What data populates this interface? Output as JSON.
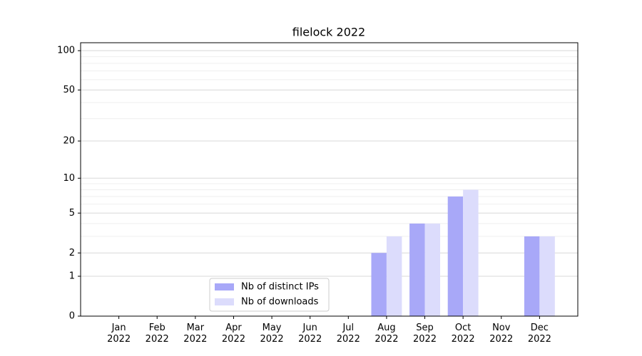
{
  "chart_data": {
    "type": "bar",
    "title": "filelock 2022",
    "categories": [
      "Jan 2022",
      "Feb 2022",
      "Mar 2022",
      "Apr 2022",
      "May 2022",
      "Jun 2022",
      "Jul 2022",
      "Aug 2022",
      "Sep 2022",
      "Oct 2022",
      "Nov 2022",
      "Dec 2022"
    ],
    "series": [
      {
        "name": "Nb of distinct IPs",
        "color": "#a8a8f8",
        "values": [
          0,
          0,
          0,
          0,
          0,
          0,
          0,
          2,
          4,
          7,
          0,
          3
        ]
      },
      {
        "name": "Nb of downloads",
        "color": "#dcdcfc",
        "values": [
          0,
          0,
          0,
          0,
          0,
          0,
          0,
          3,
          4,
          8,
          0,
          3
        ]
      }
    ],
    "yscale": "log1p",
    "ylim": [
      0,
      115
    ],
    "yticks": [
      0,
      1,
      2,
      5,
      10,
      20,
      50,
      100
    ],
    "yminor": [
      3,
      4,
      6,
      7,
      8,
      9,
      30,
      40,
      60,
      70,
      80,
      90
    ],
    "grid": true,
    "legend": "lower center"
  }
}
